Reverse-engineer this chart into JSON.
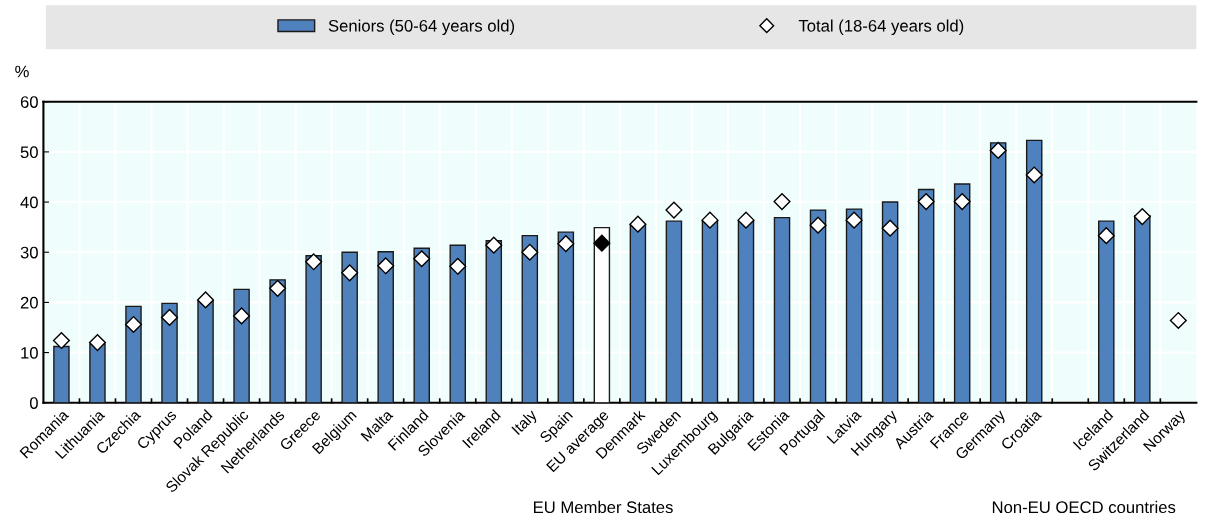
{
  "chart_data": {
    "type": "bar",
    "categories": [
      "Romania",
      "Lithuania",
      "Czechia",
      "Cyprus",
      "Poland",
      "Slovak Republic",
      "Netherlands",
      "Greece",
      "Belgium",
      "Malta",
      "Finland",
      "Slovenia",
      "Ireland",
      "Italy",
      "Spain",
      "EU average",
      "Denmark",
      "Sweden",
      "Luxembourg",
      "Bulgaria",
      "Estonia",
      "Portugal",
      "Latvia",
      "Hungary",
      "Austria",
      "France",
      "Germany",
      "Croatia",
      null,
      "Iceland",
      "Switzerland",
      "Norway"
    ],
    "series": [
      {
        "name": "Seniors (50-64 years old)",
        "color": "#4f81bd",
        "colors": [
          "#4f81bd",
          "#4f81bd",
          "#4f81bd",
          "#4f81bd",
          "#4f81bd",
          "#4f81bd",
          "#4f81bd",
          "#4f81bd",
          "#4f81bd",
          "#4f81bd",
          "#4f81bd",
          "#4f81bd",
          "#4f81bd",
          "#4f81bd",
          "#4f81bd",
          "#ffffff",
          "#4f81bd",
          "#4f81bd",
          "#4f81bd",
          "#4f81bd",
          "#4f81bd",
          "#4f81bd",
          "#4f81bd",
          "#4f81bd",
          "#4f81bd",
          "#4f81bd",
          "#4f81bd",
          "#4f81bd",
          "#4f81bd",
          "#4f81bd",
          "#4f81bd",
          "#4f81bd"
        ],
        "values": [
          11.2,
          11.7,
          19.2,
          19.8,
          20.3,
          22.6,
          24.5,
          29.3,
          30.0,
          30.1,
          30.8,
          31.4,
          32.3,
          33.3,
          34.0,
          34.9,
          35.5,
          36.2,
          36.3,
          36.3,
          36.9,
          38.4,
          38.6,
          40.0,
          42.5,
          43.6,
          51.8,
          52.3,
          null,
          36.2,
          37.3,
          null
        ]
      },
      {
        "name": "Total (18-64 years old)",
        "type": "scatter",
        "marker": "diamond",
        "color": "#ffffff",
        "colors": [
          "#ffffff",
          "#ffffff",
          "#ffffff",
          "#ffffff",
          "#ffffff",
          "#ffffff",
          "#ffffff",
          "#ffffff",
          "#ffffff",
          "#ffffff",
          "#ffffff",
          "#ffffff",
          "#ffffff",
          "#ffffff",
          "#ffffff",
          "#000000",
          "#ffffff",
          "#ffffff",
          "#ffffff",
          "#ffffff",
          "#ffffff",
          "#ffffff",
          "#ffffff",
          "#ffffff",
          "#ffffff",
          "#ffffff",
          "#ffffff",
          "#ffffff",
          "#ffffff",
          "#ffffff",
          "#ffffff",
          "#ffffff"
        ],
        "values": [
          12.4,
          12.0,
          15.6,
          17.0,
          20.5,
          17.3,
          22.8,
          28.1,
          25.9,
          27.3,
          28.7,
          27.2,
          31.4,
          30.0,
          31.7,
          31.8,
          35.6,
          38.4,
          36.4,
          36.4,
          40.1,
          35.4,
          36.4,
          34.8,
          40.1,
          40.1,
          50.3,
          45.4,
          null,
          33.3,
          37.1,
          16.4
        ]
      }
    ],
    "ylabel": "%",
    "ylim": [
      0,
      60
    ],
    "yticks": [
      0,
      10,
      20,
      30,
      40,
      50,
      60
    ],
    "grid": true,
    "legend": "top",
    "annotations": [
      "EU Member States",
      "Non-EU OECD countries"
    ]
  }
}
